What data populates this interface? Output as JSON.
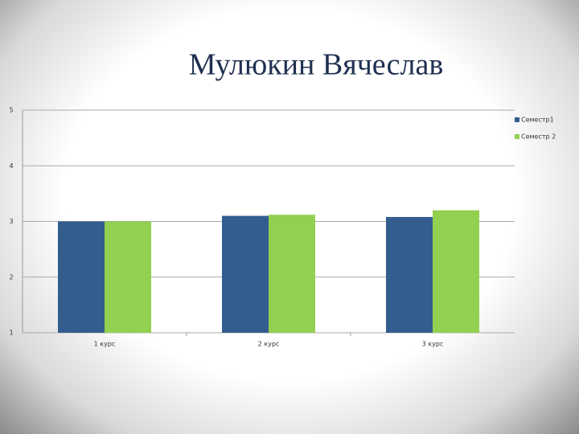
{
  "chart_data": {
    "type": "bar",
    "title": "Мулюкин Вячеслав",
    "categories": [
      "1 курс",
      "2 курс",
      "3 курс"
    ],
    "series": [
      {
        "name": "Семестр1",
        "color": "#335c8f",
        "values": [
          3,
          3.1,
          3.08
        ]
      },
      {
        "name": "Семестр 2",
        "color": "#92d050",
        "values": [
          3,
          3.12,
          3.2
        ]
      }
    ],
    "ylim": [
      1,
      5
    ],
    "yticks": [
      1,
      2,
      3,
      4,
      5
    ],
    "grid": true,
    "legend": "right"
  }
}
